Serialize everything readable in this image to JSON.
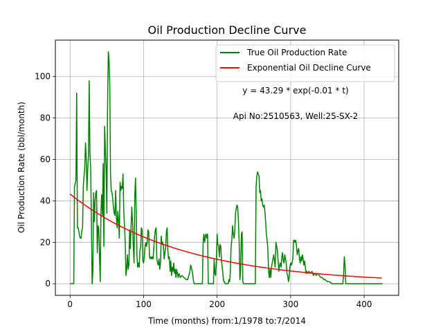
{
  "chart_data": {
    "type": "line",
    "title": "Oil Production Decline Curve",
    "xlabel": "Time (months) from:1/1978 to:7/2014",
    "ylabel": "Oil Production Rate (bbl/month)",
    "xlim": [
      -20,
      447
    ],
    "ylim": [
      -5.6,
      117.6
    ],
    "xticks": [
      0,
      100,
      200,
      300,
      400
    ],
    "yticks": [
      0,
      20,
      40,
      60,
      80,
      100
    ],
    "grid": true,
    "legend_position": "top-right",
    "series": [
      {
        "name": "True Oil Production Rate",
        "color": "#008000",
        "points": [
          [
            0,
            0
          ],
          [
            5,
            0
          ],
          [
            6,
            47
          ],
          [
            8,
            50
          ],
          [
            9,
            92
          ],
          [
            10,
            27
          ],
          [
            11,
            27
          ],
          [
            12,
            25
          ],
          [
            13,
            23
          ],
          [
            14,
            22
          ],
          [
            15,
            22
          ],
          [
            16,
            26
          ],
          [
            17,
            27
          ],
          [
            18,
            47
          ],
          [
            19,
            52
          ],
          [
            20,
            56
          ],
          [
            21,
            68
          ],
          [
            22,
            60
          ],
          [
            23,
            45
          ],
          [
            24,
            55
          ],
          [
            25,
            62
          ],
          [
            26,
            98
          ],
          [
            27,
            63
          ],
          [
            28,
            56
          ],
          [
            29,
            31
          ],
          [
            30,
            0
          ],
          [
            31,
            6
          ],
          [
            32,
            44
          ],
          [
            33,
            30
          ],
          [
            34,
            40
          ],
          [
            35,
            44
          ],
          [
            36,
            45
          ],
          [
            37,
            15
          ],
          [
            38,
            28
          ],
          [
            39,
            27
          ],
          [
            40,
            14
          ],
          [
            41,
            1
          ],
          [
            42,
            35
          ],
          [
            43,
            43
          ],
          [
            44,
            33
          ],
          [
            45,
            58
          ],
          [
            46,
            18
          ],
          [
            47,
            76
          ],
          [
            48,
            65
          ],
          [
            49,
            56
          ],
          [
            50,
            34
          ],
          [
            51,
            85
          ],
          [
            52,
            112
          ],
          [
            53,
            108
          ],
          [
            54,
            96
          ],
          [
            55,
            53
          ],
          [
            56,
            45
          ],
          [
            57,
            44
          ],
          [
            58,
            41
          ],
          [
            59,
            37
          ],
          [
            60,
            34
          ],
          [
            61,
            33
          ],
          [
            62,
            45
          ],
          [
            63,
            32
          ],
          [
            64,
            27
          ],
          [
            65,
            35
          ],
          [
            66,
            30
          ],
          [
            67,
            22
          ],
          [
            68,
            49
          ],
          [
            69,
            45
          ],
          [
            70,
            47
          ],
          [
            71,
            46
          ],
          [
            72,
            53
          ],
          [
            73,
            35
          ],
          [
            74,
            28
          ],
          [
            75,
            20
          ],
          [
            76,
            4
          ],
          [
            77,
            7
          ],
          [
            78,
            14
          ],
          [
            79,
            7
          ],
          [
            80,
            9
          ],
          [
            81,
            26
          ],
          [
            82,
            17
          ],
          [
            83,
            28
          ],
          [
            84,
            37
          ],
          [
            85,
            29
          ],
          [
            86,
            18
          ],
          [
            87,
            10
          ],
          [
            88,
            42
          ],
          [
            89,
            51
          ],
          [
            90,
            34
          ],
          [
            91,
            13
          ],
          [
            92,
            8
          ],
          [
            93,
            10
          ],
          [
            94,
            8
          ],
          [
            95,
            16
          ],
          [
            96,
            18
          ],
          [
            97,
            27
          ],
          [
            98,
            26
          ],
          [
            99,
            11
          ],
          [
            100,
            10
          ],
          [
            101,
            13
          ],
          [
            102,
            18
          ],
          [
            103,
            20
          ],
          [
            104,
            18
          ],
          [
            105,
            20
          ],
          [
            106,
            26
          ],
          [
            107,
            25
          ],
          [
            108,
            13
          ],
          [
            109,
            12
          ],
          [
            110,
            13
          ],
          [
            111,
            12
          ],
          [
            112,
            13
          ],
          [
            113,
            12
          ],
          [
            114,
            18
          ],
          [
            115,
            23
          ],
          [
            116,
            26
          ],
          [
            117,
            27
          ],
          [
            118,
            12
          ],
          [
            119,
            10
          ],
          [
            120,
            9
          ],
          [
            121,
            12
          ],
          [
            122,
            7
          ],
          [
            123,
            10
          ],
          [
            124,
            23
          ],
          [
            125,
            19
          ],
          [
            126,
            20
          ],
          [
            127,
            18
          ],
          [
            128,
            12
          ],
          [
            129,
            15
          ],
          [
            130,
            17
          ],
          [
            131,
            25
          ],
          [
            132,
            27
          ],
          [
            133,
            16
          ],
          [
            134,
            12
          ],
          [
            135,
            13
          ],
          [
            136,
            6
          ],
          [
            137,
            11
          ],
          [
            138,
            4
          ],
          [
            139,
            8
          ],
          [
            140,
            6
          ],
          [
            141,
            10
          ],
          [
            142,
            5
          ],
          [
            143,
            7
          ],
          [
            144,
            3
          ],
          [
            145,
            7
          ],
          [
            146,
            5
          ],
          [
            147,
            3
          ],
          [
            148,
            5
          ],
          [
            150,
            3
          ],
          [
            152,
            4
          ],
          [
            155,
            3
          ],
          [
            158,
            2
          ],
          [
            160,
            2
          ],
          [
            163,
            6
          ],
          [
            164,
            9
          ],
          [
            165,
            8
          ],
          [
            166,
            6
          ],
          [
            167,
            4
          ],
          [
            168,
            1
          ],
          [
            169,
            0
          ],
          [
            170,
            0
          ],
          [
            180,
            0
          ],
          [
            181,
            20
          ],
          [
            182,
            24
          ],
          [
            183,
            20
          ],
          [
            184,
            23
          ],
          [
            185,
            24
          ],
          [
            186,
            22
          ],
          [
            187,
            24
          ],
          [
            188,
            0
          ],
          [
            195,
            0
          ],
          [
            196,
            12
          ],
          [
            197,
            5
          ],
          [
            198,
            4
          ],
          [
            199,
            11
          ],
          [
            200,
            24
          ],
          [
            201,
            19
          ],
          [
            202,
            18
          ],
          [
            203,
            13
          ],
          [
            204,
            19
          ],
          [
            205,
            18
          ],
          [
            206,
            11
          ],
          [
            207,
            8
          ],
          [
            208,
            4
          ],
          [
            209,
            1
          ],
          [
            210,
            1
          ],
          [
            211,
            0
          ],
          [
            215,
            0
          ],
          [
            216,
            2
          ],
          [
            217,
            1
          ],
          [
            218,
            6
          ],
          [
            219,
            18
          ],
          [
            220,
            21
          ],
          [
            221,
            28
          ],
          [
            222,
            24
          ],
          [
            223,
            22
          ],
          [
            224,
            25
          ],
          [
            225,
            34
          ],
          [
            226,
            36
          ],
          [
            227,
            38
          ],
          [
            228,
            37
          ],
          [
            229,
            30
          ],
          [
            230,
            20
          ],
          [
            231,
            2
          ],
          [
            232,
            6
          ],
          [
            233,
            24
          ],
          [
            234,
            25
          ],
          [
            235,
            1
          ],
          [
            236,
            0
          ],
          [
            252,
            0
          ],
          [
            253,
            47
          ],
          [
            254,
            52
          ],
          [
            255,
            54
          ],
          [
            256,
            53
          ],
          [
            257,
            52
          ],
          [
            258,
            44
          ],
          [
            259,
            45
          ],
          [
            260,
            40
          ],
          [
            261,
            41
          ],
          [
            262,
            38
          ],
          [
            263,
            37
          ],
          [
            264,
            38
          ],
          [
            265,
            35
          ],
          [
            266,
            30
          ],
          [
            267,
            24
          ],
          [
            268,
            21
          ],
          [
            269,
            17
          ],
          [
            270,
            6
          ],
          [
            271,
            3
          ],
          [
            272,
            7
          ],
          [
            273,
            3
          ],
          [
            274,
            8
          ],
          [
            275,
            10
          ],
          [
            276,
            12
          ],
          [
            277,
            14
          ],
          [
            278,
            11
          ],
          [
            279,
            8
          ],
          [
            280,
            20
          ],
          [
            281,
            18
          ],
          [
            282,
            16
          ],
          [
            283,
            11
          ],
          [
            284,
            6
          ],
          [
            285,
            9
          ],
          [
            286,
            10
          ],
          [
            287,
            8
          ],
          [
            288,
            13
          ],
          [
            289,
            15
          ],
          [
            290,
            11
          ],
          [
            291,
            10
          ],
          [
            292,
            14
          ],
          [
            293,
            12
          ],
          [
            294,
            10
          ],
          [
            295,
            5
          ],
          [
            296,
            4
          ],
          [
            297,
            1
          ],
          [
            298,
            3
          ],
          [
            299,
            8
          ],
          [
            300,
            10
          ],
          [
            301,
            9
          ],
          [
            302,
            10
          ],
          [
            303,
            12
          ],
          [
            304,
            21
          ],
          [
            305,
            21
          ],
          [
            306,
            20
          ],
          [
            307,
            21
          ],
          [
            308,
            18
          ],
          [
            309,
            14
          ],
          [
            310,
            16
          ],
          [
            311,
            17
          ],
          [
            312,
            12
          ],
          [
            313,
            10
          ],
          [
            314,
            13
          ],
          [
            315,
            11
          ],
          [
            316,
            14
          ],
          [
            317,
            12
          ],
          [
            318,
            9
          ],
          [
            319,
            11
          ],
          [
            320,
            8
          ],
          [
            321,
            5
          ],
          [
            322,
            6
          ],
          [
            323,
            5
          ],
          [
            325,
            6
          ],
          [
            327,
            5
          ],
          [
            329,
            6
          ],
          [
            331,
            4
          ],
          [
            333,
            5
          ],
          [
            335,
            4
          ],
          [
            337,
            5
          ],
          [
            339,
            4
          ],
          [
            341,
            3
          ],
          [
            343,
            3
          ],
          [
            345,
            2
          ],
          [
            347,
            2
          ],
          [
            350,
            1
          ],
          [
            353,
            1
          ],
          [
            356,
            0
          ],
          [
            360,
            0
          ],
          [
            370,
            0
          ],
          [
            371,
            0
          ],
          [
            372,
            4
          ],
          [
            373,
            13
          ],
          [
            374,
            9
          ],
          [
            375,
            0
          ],
          [
            425,
            0
          ]
        ]
      },
      {
        "name": "Exponential Oil Decline Curve",
        "color": "#ff0000",
        "function": {
          "a": 43.29,
          "b": 0.0065,
          "x_start": 0,
          "x_end": 425
        }
      }
    ],
    "annotations": [
      {
        "text": "y = 43.29 * exp(-0.01 * t)"
      },
      {
        "text": "Api No:2510563, Well:25-SX-2"
      }
    ]
  }
}
